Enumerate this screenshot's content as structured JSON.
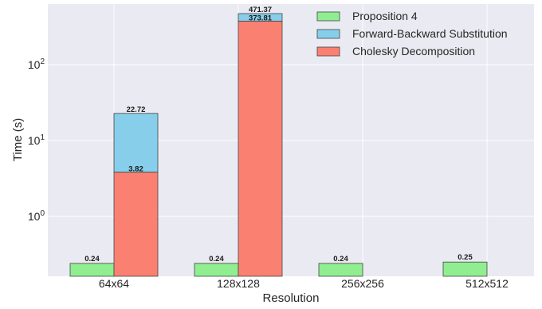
{
  "chart_data": {
    "type": "bar",
    "xlabel": "Resolution",
    "ylabel": "Time (s)",
    "yscale": "log",
    "ylim": [
      0.15,
      600
    ],
    "grid": true,
    "legend_position": "top-right",
    "categories": [
      "64x64",
      "128x128",
      "256x256",
      "512x512"
    ],
    "y_ticks": [
      {
        "base": "10",
        "exp": "0",
        "value": 1
      },
      {
        "base": "10",
        "exp": "1",
        "value": 10
      },
      {
        "base": "10",
        "exp": "2",
        "value": 100
      }
    ],
    "series": [
      {
        "name": "Proposition 4",
        "color": "#90ee90",
        "group": "left",
        "values": [
          0.24,
          0.24,
          0.24,
          0.25
        ],
        "labels": [
          "0.24",
          "0.24",
          "0.24",
          "0.25"
        ]
      },
      {
        "name": "Cholesky Decomposition",
        "color": "#fa8072",
        "group": "right",
        "stack_base": true,
        "values": [
          3.82,
          373.81,
          null,
          null
        ],
        "labels": [
          "3.82",
          "373.81",
          "",
          ""
        ]
      },
      {
        "name": "Forward-Backward Substitution",
        "color": "#87ceeb",
        "group": "right",
        "stacked_total": true,
        "values": [
          22.72,
          471.37,
          null,
          null
        ],
        "labels": [
          "22.72",
          "471.37",
          "",
          ""
        ]
      }
    ],
    "legend_order": [
      "Proposition 4",
      "Forward-Backward Substitution",
      "Cholesky Decomposition"
    ]
  },
  "colors": {
    "plot_background": "#eaeaf2",
    "grid": "#ffffff",
    "bar_edge": "#444444"
  }
}
